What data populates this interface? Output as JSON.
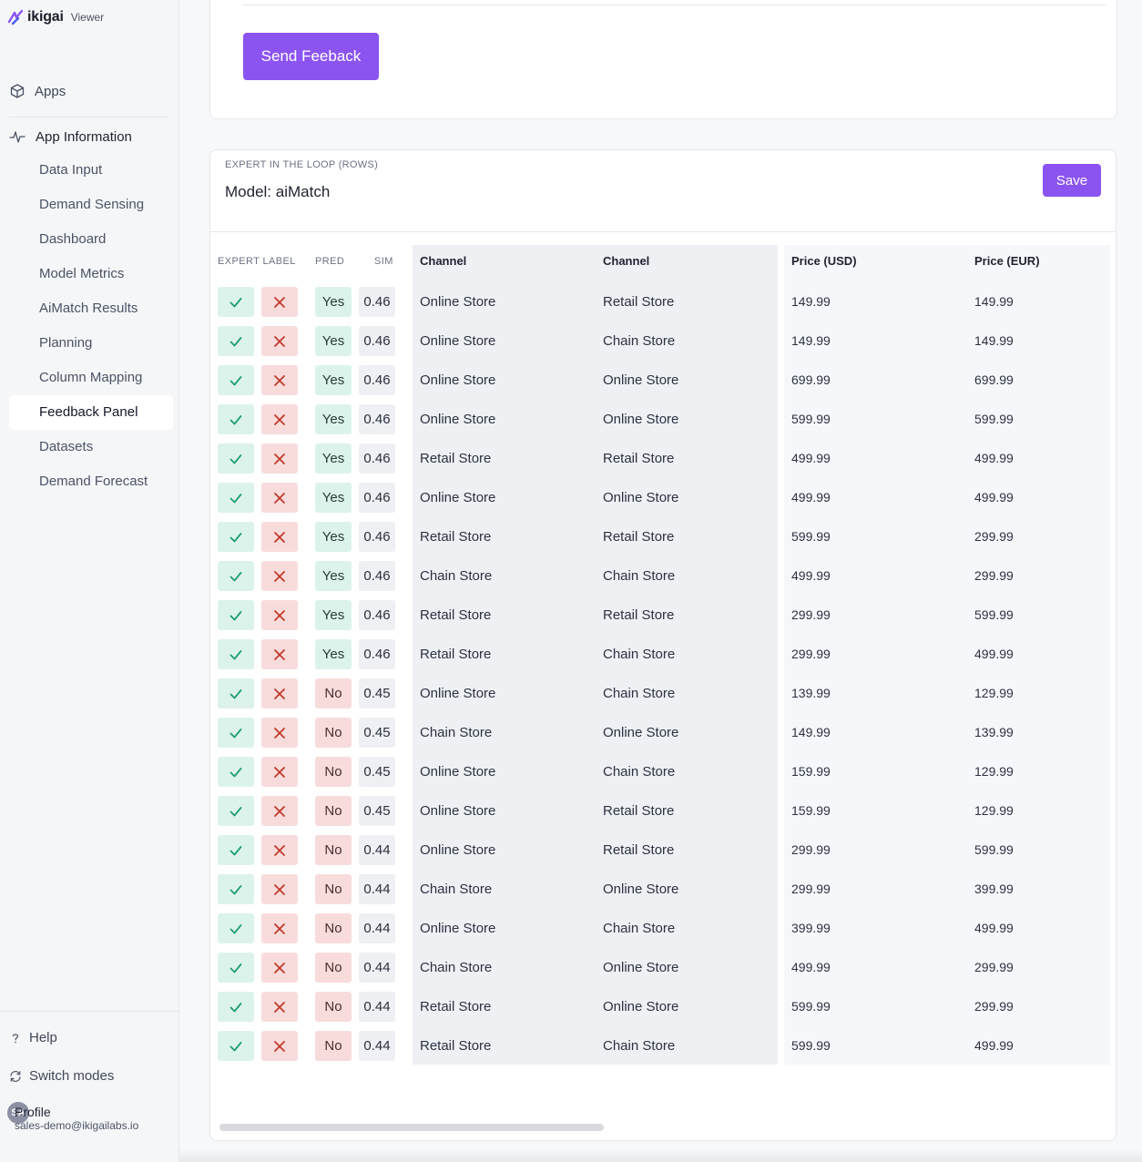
{
  "brand": {
    "logo": "ikigai",
    "mode": "Viewer"
  },
  "nav": {
    "apps_label": "Apps",
    "section_label": "App Information",
    "items": [
      "Data Input",
      "Demand Sensing",
      "Dashboard",
      "Model Metrics",
      "AiMatch Results",
      "Planning",
      "Column Mapping",
      "Feedback Panel",
      "Datasets",
      "Demand Forecast"
    ],
    "active": "Feedback Panel"
  },
  "footer": {
    "help_label": "Help",
    "switch_label": "Switch modes",
    "profile_initials": "SA",
    "profile_name": "Profile",
    "profile_email": "sales-demo@ikigailabs.io"
  },
  "feedback_button": "Send Feeback",
  "panel": {
    "eyebrow": "EXPERT IN THE LOOP (ROWS)",
    "model": "Model: aiMatch",
    "save_label": "Save",
    "headers": {
      "expert_label": "EXPERT LABEL",
      "pred": "PRED",
      "sim": "SIM",
      "channel_a": "Channel",
      "channel_b": "Channel",
      "price_usd": "Price (USD)",
      "price_eur": "Price (EUR)"
    },
    "rows": [
      {
        "pred": "Yes",
        "sim": "0.46",
        "ch_a": "Online Store",
        "ch_b": "Retail Store",
        "usd": "149.99",
        "eur": "149.99"
      },
      {
        "pred": "Yes",
        "sim": "0.46",
        "ch_a": "Online Store",
        "ch_b": "Chain Store",
        "usd": "149.99",
        "eur": "149.99"
      },
      {
        "pred": "Yes",
        "sim": "0.46",
        "ch_a": "Online Store",
        "ch_b": "Online Store",
        "usd": "699.99",
        "eur": "699.99"
      },
      {
        "pred": "Yes",
        "sim": "0.46",
        "ch_a": "Online Store",
        "ch_b": "Online Store",
        "usd": "599.99",
        "eur": "599.99"
      },
      {
        "pred": "Yes",
        "sim": "0.46",
        "ch_a": "Retail Store",
        "ch_b": "Retail Store",
        "usd": "499.99",
        "eur": "499.99"
      },
      {
        "pred": "Yes",
        "sim": "0.46",
        "ch_a": "Online Store",
        "ch_b": "Online Store",
        "usd": "499.99",
        "eur": "499.99"
      },
      {
        "pred": "Yes",
        "sim": "0.46",
        "ch_a": "Retail Store",
        "ch_b": "Retail Store",
        "usd": "599.99",
        "eur": "299.99"
      },
      {
        "pred": "Yes",
        "sim": "0.46",
        "ch_a": "Chain Store",
        "ch_b": "Chain Store",
        "usd": "499.99",
        "eur": "299.99"
      },
      {
        "pred": "Yes",
        "sim": "0.46",
        "ch_a": "Retail Store",
        "ch_b": "Retail Store",
        "usd": "299.99",
        "eur": "599.99"
      },
      {
        "pred": "Yes",
        "sim": "0.46",
        "ch_a": "Retail Store",
        "ch_b": "Chain Store",
        "usd": "299.99",
        "eur": "499.99"
      },
      {
        "pred": "No",
        "sim": "0.45",
        "ch_a": "Online Store",
        "ch_b": "Chain Store",
        "usd": "139.99",
        "eur": "129.99"
      },
      {
        "pred": "No",
        "sim": "0.45",
        "ch_a": "Chain Store",
        "ch_b": "Online Store",
        "usd": "149.99",
        "eur": "139.99"
      },
      {
        "pred": "No",
        "sim": "0.45",
        "ch_a": "Online Store",
        "ch_b": "Chain Store",
        "usd": "159.99",
        "eur": "129.99"
      },
      {
        "pred": "No",
        "sim": "0.45",
        "ch_a": "Online Store",
        "ch_b": "Retail Store",
        "usd": "159.99",
        "eur": "129.99"
      },
      {
        "pred": "No",
        "sim": "0.44",
        "ch_a": "Online Store",
        "ch_b": "Retail Store",
        "usd": "299.99",
        "eur": "599.99"
      },
      {
        "pred": "No",
        "sim": "0.44",
        "ch_a": "Chain Store",
        "ch_b": "Online Store",
        "usd": "299.99",
        "eur": "399.99"
      },
      {
        "pred": "No",
        "sim": "0.44",
        "ch_a": "Online Store",
        "ch_b": "Chain Store",
        "usd": "399.99",
        "eur": "499.99"
      },
      {
        "pred": "No",
        "sim": "0.44",
        "ch_a": "Chain Store",
        "ch_b": "Online Store",
        "usd": "499.99",
        "eur": "299.99"
      },
      {
        "pred": "No",
        "sim": "0.44",
        "ch_a": "Retail Store",
        "ch_b": "Online Store",
        "usd": "599.99",
        "eur": "299.99"
      },
      {
        "pred": "No",
        "sim": "0.44",
        "ch_a": "Retail Store",
        "ch_b": "Chain Store",
        "usd": "599.99",
        "eur": "499.99"
      }
    ]
  },
  "icons": {
    "apps": "cube-icon",
    "section": "activity-icon",
    "approve": "check-icon",
    "reject": "close-icon",
    "help": "question-icon",
    "switch": "refresh-icon"
  },
  "colors": {
    "accent": "#8b54f0",
    "approve_bg": "#dcf3ec",
    "reject_bg": "#f8dcdc",
    "approve_fg": "#1f9d72",
    "reject_fg": "#c0392b"
  }
}
